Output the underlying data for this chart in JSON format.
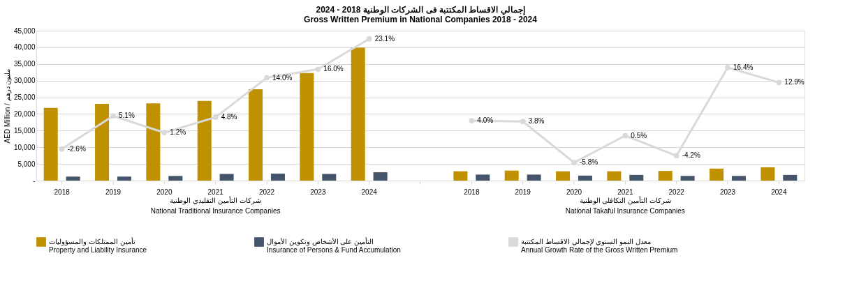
{
  "chart_data": {
    "type": "bar",
    "title": "إجمالي الاقساط المكتتبة فى الشركات  الوطنية 2018 - 2024\nGross Written Premium in National Companies 2018 - 2024",
    "ylabel": "AED Million / مليون درهم",
    "categories": [
      "2018",
      "2019",
      "2020",
      "2021",
      "2022",
      "2023",
      "2024",
      null,
      "2018",
      "2019",
      "2020",
      "2021",
      "2022",
      "2023",
      "2024"
    ],
    "annotations": [
      "شركات التأمين التقليدي الوطنية\nNational Traditional Insurance Companies",
      "شركات التأمين التكافلي الوطنية\nNational Takaful Insurance Companies"
    ],
    "series": [
      {
        "name": "تأمين الممتلكات والمسؤوليات\nProperty and Liability Insurance",
        "color": "#bf9000",
        "values": [
          21800,
          23000,
          23200,
          23900,
          27400,
          32300,
          39900,
          null,
          2800,
          3000,
          2800,
          2800,
          2900,
          3600,
          4000
        ]
      },
      {
        "name": "التأمين على الأشخاص وتكوين الأموال\nInsurance of Persons & Fund Accumulation",
        "color": "#44546a",
        "values": [
          1200,
          1200,
          1400,
          2000,
          2100,
          2000,
          2500,
          null,
          1800,
          1800,
          1500,
          1700,
          1400,
          1400,
          1700
        ]
      },
      {
        "name": "معدل النمو السنوي لإجمالي الاقساط المكتتبة\nAnnual Growth Rate of the Gross Written Premium",
        "type": "line",
        "axis": "y2",
        "color": "#d9d9d9",
        "marker": "circle",
        "values": [
          -2.6,
          5.1,
          1.2,
          4.8,
          14.0,
          16.0,
          23.1,
          null,
          4.0,
          3.8,
          -5.8,
          0.5,
          -4.2,
          16.4,
          12.9
        ],
        "value_labels": [
          "-2.6%",
          "5.1%",
          "1.2%",
          "4.8%",
          "14.0%",
          "16.0%",
          "23.1%",
          null,
          "4.0%",
          "3.8%",
          "-5.8%",
          "0.5%",
          "-4.2%",
          "16.4%",
          "12.9%"
        ]
      }
    ],
    "ylim": [
      0,
      45000
    ],
    "yticks": [
      {
        "value": 0,
        "label": "-"
      },
      {
        "value": 5000,
        "label": "5,000"
      },
      {
        "value": 10000,
        "label": "10,000"
      },
      {
        "value": 15000,
        "label": "15,000"
      },
      {
        "value": 20000,
        "label": "20,000"
      },
      {
        "value": 25000,
        "label": "25,000"
      },
      {
        "value": 30000,
        "label": "30,000"
      },
      {
        "value": 35000,
        "label": "35,000"
      },
      {
        "value": 40000,
        "label": "40,000"
      },
      {
        "value": 45000,
        "label": "45,000"
      }
    ],
    "y2lim": [
      -10,
      25
    ],
    "grid": "y",
    "legend": "bottom"
  }
}
